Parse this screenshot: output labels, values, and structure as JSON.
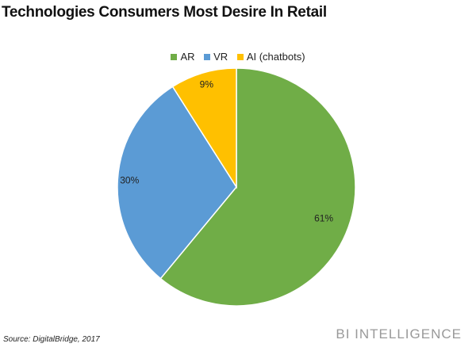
{
  "chart_data": {
    "type": "pie",
    "title": "Technologies Consumers Most Desire In Retail",
    "categories": [
      "AR",
      "VR",
      "AI (chatbots)"
    ],
    "values": [
      61,
      30,
      9
    ],
    "labels": [
      "61%",
      "30%",
      "9%"
    ],
    "colors": [
      "#70AD47",
      "#5B9BD5",
      "#FFC000"
    ],
    "legend_position": "top",
    "start": "top, clockwise"
  },
  "source": "Source: DigitalBridge, 2017",
  "brand": "BI INTELLIGENCE"
}
